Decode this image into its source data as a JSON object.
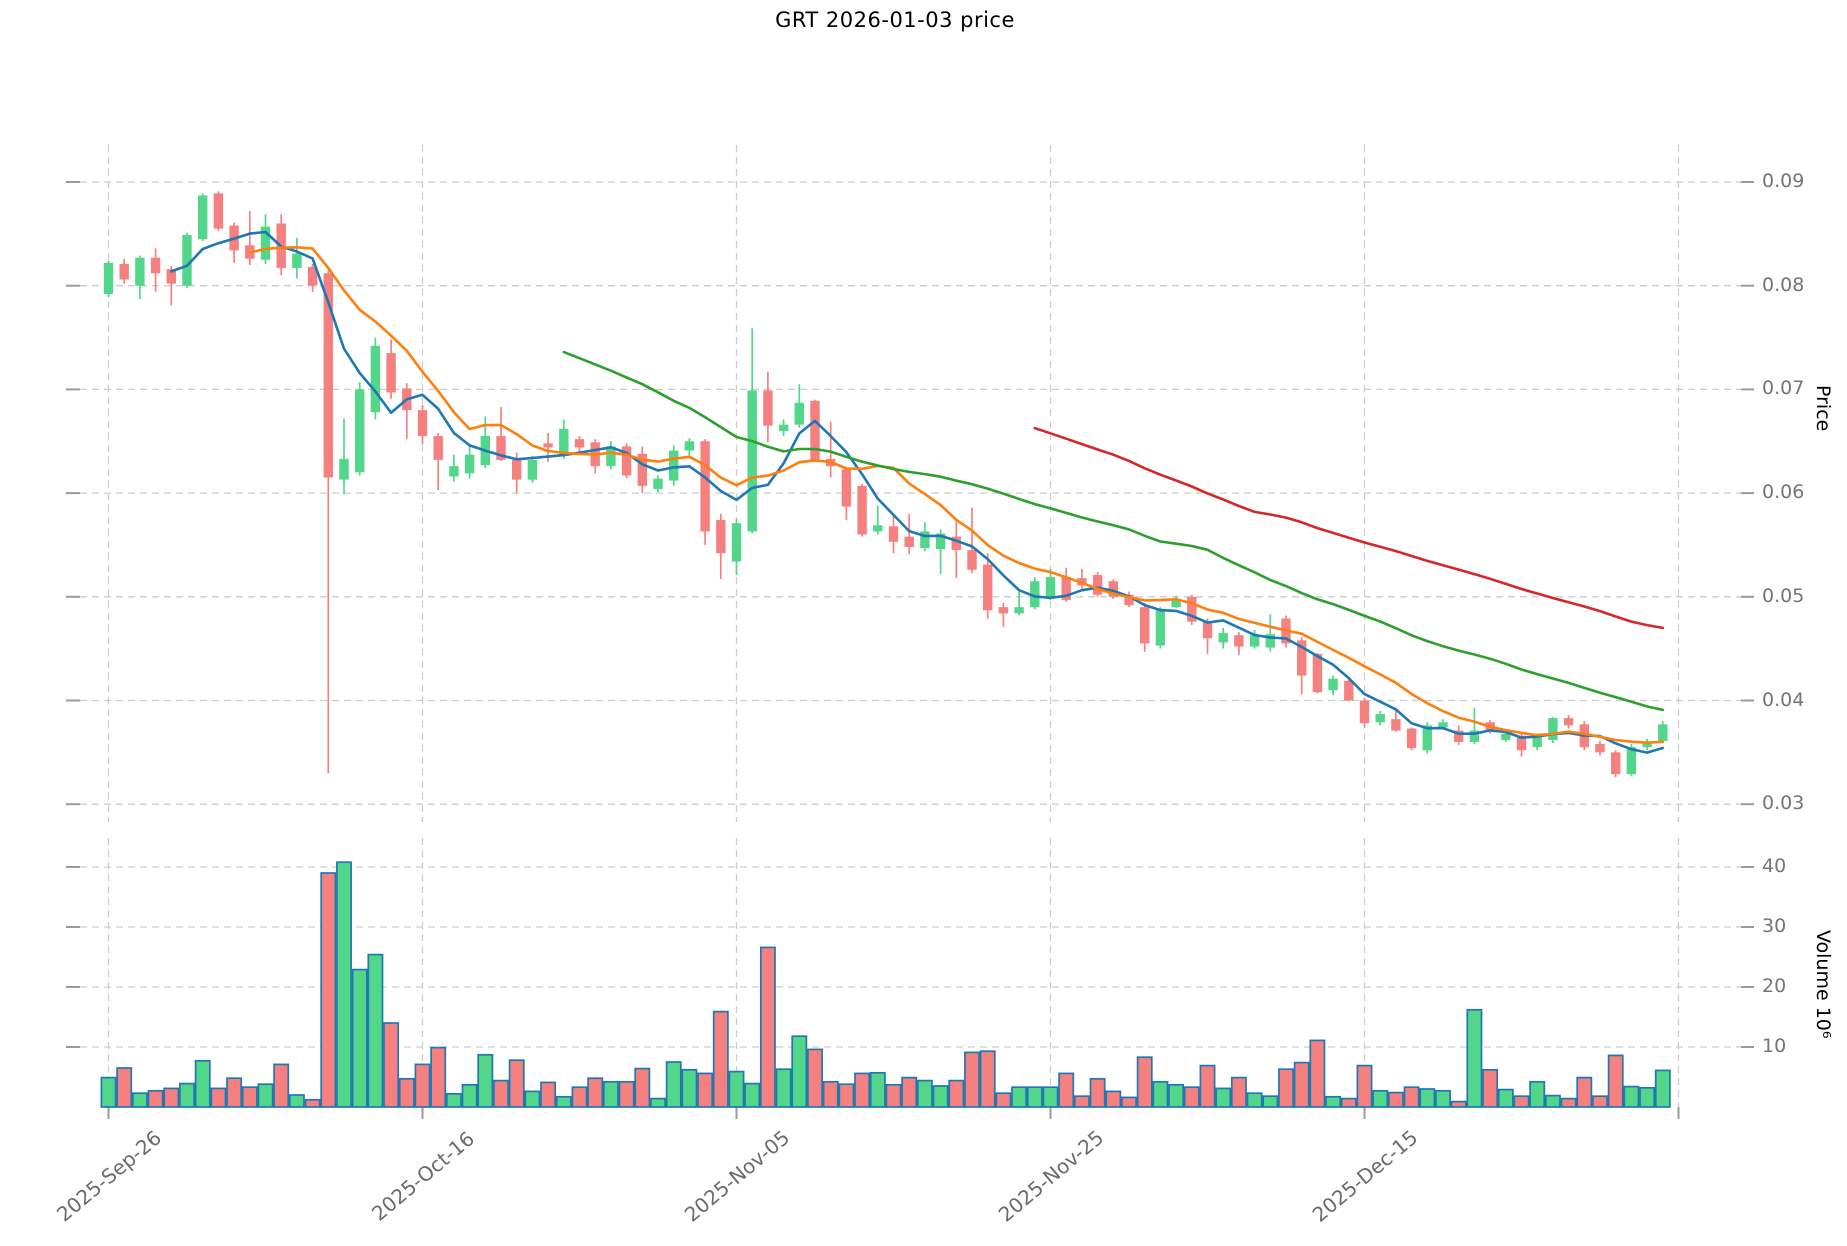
{
  "title": "GRT  2026-01-03  price",
  "axes": {
    "price_label": "Price",
    "volume_label": "Volume 10⁶",
    "price_ticks": [
      "0.09",
      "0.08",
      "0.07",
      "0.06",
      "0.05",
      "0.04",
      "0.03"
    ],
    "volume_ticks": [
      "40",
      "30",
      "20",
      "10"
    ],
    "x_ticks": [
      {
        "label": "2025-Sep-26",
        "day": 0
      },
      {
        "label": "2025-Oct-16",
        "day": 20
      },
      {
        "label": "2025-Nov-05",
        "day": 40
      },
      {
        "label": "2025-Nov-25",
        "day": 60
      },
      {
        "label": "2025-Dec-15",
        "day": 80
      },
      {
        "label": "",
        "day": 100
      }
    ]
  },
  "colors": {
    "up": "#52d689",
    "down": "#f4817f",
    "volume_edge": "#1f77b4",
    "ma5": "#1f77b4",
    "ma10": "#ff7f0e",
    "ma30": "#2ca02c",
    "ma60": "#d62728",
    "grid": "#cdcdcd",
    "tick": "#9a9a9a",
    "tick_text": "#757575"
  },
  "chart_data": {
    "type": "candlestick+volume",
    "title": "GRT  2026-01-03  price",
    "ylabel_price": "Price",
    "ylabel_volume": "Volume 10⁶",
    "price_ylim": [
      0.0285,
      0.094
    ],
    "volume_ylim_millions": [
      0,
      44.8
    ],
    "grid": "dashed",
    "legend": "none",
    "moving_averages": [
      {
        "n": 5,
        "color": "#1f77b4"
      },
      {
        "n": 10,
        "color": "#ff7f0e"
      },
      {
        "n": 30,
        "color": "#2ca02c"
      },
      {
        "n": 60,
        "color": "#d62728"
      }
    ],
    "columns": [
      "date",
      "open",
      "high",
      "low",
      "close",
      "volume_millions"
    ],
    "candles": [
      [
        "2025-09-26",
        0.0792,
        0.0824,
        0.0789,
        0.0822,
        4.9
      ],
      [
        "2025-09-27",
        0.0821,
        0.0826,
        0.0802,
        0.0806,
        6.5
      ],
      [
        "2025-09-28",
        0.08,
        0.0829,
        0.0787,
        0.0827,
        2.3
      ],
      [
        "2025-09-29",
        0.0827,
        0.0836,
        0.0794,
        0.0812,
        2.7
      ],
      [
        "2025-09-30",
        0.0816,
        0.0819,
        0.0781,
        0.0802,
        3.1
      ],
      [
        "2025-10-01",
        0.08,
        0.0851,
        0.0798,
        0.0849,
        3.9
      ],
      [
        "2025-10-02",
        0.0845,
        0.0889,
        0.0843,
        0.0887,
        7.7
      ],
      [
        "2025-10-03",
        0.0889,
        0.0891,
        0.0853,
        0.0855,
        3.1
      ],
      [
        "2025-10-04",
        0.0858,
        0.0861,
        0.0822,
        0.0834,
        4.8
      ],
      [
        "2025-10-05",
        0.0839,
        0.0872,
        0.082,
        0.0826,
        3.3
      ],
      [
        "2025-10-06",
        0.0825,
        0.0869,
        0.0821,
        0.0857,
        3.8
      ],
      [
        "2025-10-07",
        0.086,
        0.0869,
        0.081,
        0.0817,
        7.1
      ],
      [
        "2025-10-08",
        0.0817,
        0.0846,
        0.0807,
        0.0831,
        2.0
      ],
      [
        "2025-10-09",
        0.0818,
        0.0821,
        0.0794,
        0.08,
        1.2
      ],
      [
        "2025-10-10",
        0.0812,
        0.0815,
        0.033,
        0.0615,
        39.0
      ],
      [
        "2025-10-11",
        0.0613,
        0.0672,
        0.0599,
        0.0633,
        40.8
      ],
      [
        "2025-10-12",
        0.062,
        0.0707,
        0.0617,
        0.07,
        22.9
      ],
      [
        "2025-10-13",
        0.0678,
        0.075,
        0.0671,
        0.0742,
        25.4
      ],
      [
        "2025-10-14",
        0.0735,
        0.0748,
        0.0691,
        0.0697,
        14.0
      ],
      [
        "2025-10-15",
        0.0701,
        0.0706,
        0.0652,
        0.068,
        4.7
      ],
      [
        "2025-10-16",
        0.068,
        0.0685,
        0.0647,
        0.0655,
        7.1
      ],
      [
        "2025-10-17",
        0.0655,
        0.0658,
        0.0603,
        0.0632,
        9.9
      ],
      [
        "2025-10-18",
        0.0616,
        0.0637,
        0.0611,
        0.0626,
        2.2
      ],
      [
        "2025-10-19",
        0.0619,
        0.0647,
        0.0614,
        0.0637,
        3.7
      ],
      [
        "2025-10-20",
        0.0627,
        0.0674,
        0.0624,
        0.0655,
        8.7
      ],
      [
        "2025-10-21",
        0.0655,
        0.0683,
        0.0631,
        0.0632,
        4.4
      ],
      [
        "2025-10-22",
        0.0632,
        0.0639,
        0.06,
        0.0613,
        7.8
      ],
      [
        "2025-10-23",
        0.0613,
        0.0636,
        0.061,
        0.0632,
        2.6
      ],
      [
        "2025-10-24",
        0.0648,
        0.0658,
        0.063,
        0.0644,
        4.1
      ],
      [
        "2025-10-25",
        0.0636,
        0.0671,
        0.0633,
        0.0662,
        1.7
      ],
      [
        "2025-10-26",
        0.0652,
        0.0655,
        0.0639,
        0.0644,
        3.3
      ],
      [
        "2025-10-27",
        0.0649,
        0.0652,
        0.0619,
        0.0626,
        4.8
      ],
      [
        "2025-10-28",
        0.0626,
        0.065,
        0.0623,
        0.0645,
        4.2
      ],
      [
        "2025-10-29",
        0.0645,
        0.0648,
        0.0614,
        0.0617,
        4.2
      ],
      [
        "2025-10-30",
        0.0638,
        0.0645,
        0.06,
        0.0607,
        6.4
      ],
      [
        "2025-10-31",
        0.0604,
        0.0617,
        0.0601,
        0.0614,
        1.4
      ],
      [
        "2025-11-01",
        0.0612,
        0.0646,
        0.0607,
        0.0641,
        7.5
      ],
      [
        "2025-11-02",
        0.0641,
        0.0653,
        0.0636,
        0.065,
        6.2
      ],
      [
        "2025-11-03",
        0.065,
        0.0652,
        0.055,
        0.0563,
        5.6
      ],
      [
        "2025-11-04",
        0.0574,
        0.058,
        0.0517,
        0.0542,
        15.9
      ],
      [
        "2025-11-05",
        0.0534,
        0.0575,
        0.0521,
        0.0571,
        5.9
      ],
      [
        "2025-11-06",
        0.0563,
        0.0759,
        0.0561,
        0.0699,
        3.9
      ],
      [
        "2025-11-07",
        0.0699,
        0.0717,
        0.0649,
        0.0665,
        26.6
      ],
      [
        "2025-11-08",
        0.066,
        0.0671,
        0.0655,
        0.0666,
        6.3
      ],
      [
        "2025-11-09",
        0.0666,
        0.0705,
        0.0663,
        0.0687,
        11.8
      ],
      [
        "2025-11-10",
        0.0689,
        0.069,
        0.063,
        0.0631,
        9.6
      ],
      [
        "2025-11-11",
        0.0633,
        0.0669,
        0.0615,
        0.0626,
        4.2
      ],
      [
        "2025-11-12",
        0.0623,
        0.0625,
        0.0574,
        0.0587,
        3.8
      ],
      [
        "2025-11-13",
        0.0607,
        0.0609,
        0.0558,
        0.056,
        5.6
      ],
      [
        "2025-11-14",
        0.0563,
        0.0588,
        0.056,
        0.0569,
        5.7
      ],
      [
        "2025-11-15",
        0.0568,
        0.0578,
        0.0542,
        0.0553,
        3.7
      ],
      [
        "2025-11-16",
        0.0558,
        0.058,
        0.0541,
        0.0548,
        4.9
      ],
      [
        "2025-11-17",
        0.0547,
        0.0572,
        0.0544,
        0.0563,
        4.4
      ],
      [
        "2025-11-18",
        0.0546,
        0.0565,
        0.0522,
        0.0561,
        3.5
      ],
      [
        "2025-11-19",
        0.0558,
        0.0573,
        0.0518,
        0.0545,
        4.4
      ],
      [
        "2025-11-20",
        0.0545,
        0.0586,
        0.0523,
        0.0526,
        9.1
      ],
      [
        "2025-11-21",
        0.0531,
        0.0542,
        0.0479,
        0.0487,
        9.3
      ],
      [
        "2025-11-22",
        0.049,
        0.0494,
        0.0471,
        0.0484,
        2.3
      ],
      [
        "2025-11-23",
        0.0484,
        0.0505,
        0.0482,
        0.049,
        3.3
      ],
      [
        "2025-11-24",
        0.049,
        0.0519,
        0.0488,
        0.0515,
        3.3
      ],
      [
        "2025-11-25",
        0.05,
        0.0527,
        0.0497,
        0.0519,
        3.3
      ],
      [
        "2025-11-26",
        0.0519,
        0.0528,
        0.0495,
        0.0497,
        5.6
      ],
      [
        "2025-11-27",
        0.0518,
        0.0527,
        0.0508,
        0.0511,
        1.8
      ],
      [
        "2025-11-28",
        0.0521,
        0.0524,
        0.05,
        0.0502,
        4.7
      ],
      [
        "2025-11-29",
        0.0515,
        0.0517,
        0.0498,
        0.05,
        2.6
      ],
      [
        "2025-11-30",
        0.0502,
        0.0505,
        0.049,
        0.0492,
        1.6
      ],
      [
        "2025-12-01",
        0.049,
        0.0494,
        0.0447,
        0.0455,
        8.3
      ],
      [
        "2025-12-02",
        0.0453,
        0.049,
        0.045,
        0.0487,
        4.2
      ],
      [
        "2025-12-03",
        0.049,
        0.0501,
        0.0489,
        0.0498,
        3.7
      ],
      [
        "2025-12-04",
        0.05,
        0.0502,
        0.0473,
        0.0476,
        3.3
      ],
      [
        "2025-12-05",
        0.0476,
        0.0479,
        0.0445,
        0.046,
        6.9
      ],
      [
        "2025-12-06",
        0.0456,
        0.047,
        0.045,
        0.0465,
        3.1
      ],
      [
        "2025-12-07",
        0.0463,
        0.0466,
        0.0444,
        0.0452,
        4.9
      ],
      [
        "2025-12-08",
        0.0452,
        0.0468,
        0.045,
        0.0463,
        2.3
      ],
      [
        "2025-12-09",
        0.0451,
        0.0483,
        0.0447,
        0.0464,
        1.8
      ],
      [
        "2025-12-10",
        0.0479,
        0.0482,
        0.0451,
        0.0455,
        6.3
      ],
      [
        "2025-12-11",
        0.0458,
        0.0461,
        0.0406,
        0.0424,
        7.4
      ],
      [
        "2025-12-12",
        0.0445,
        0.0446,
        0.0407,
        0.0408,
        11.1
      ],
      [
        "2025-12-13",
        0.041,
        0.0424,
        0.0405,
        0.0421,
        1.7
      ],
      [
        "2025-12-14",
        0.0419,
        0.0421,
        0.0399,
        0.04,
        1.4
      ],
      [
        "2025-12-15",
        0.04,
        0.0402,
        0.0374,
        0.0378,
        6.9
      ],
      [
        "2025-12-16",
        0.0379,
        0.039,
        0.0376,
        0.0387,
        2.7
      ],
      [
        "2025-12-17",
        0.0382,
        0.0393,
        0.037,
        0.0371,
        2.4
      ],
      [
        "2025-12-18",
        0.0373,
        0.0374,
        0.0352,
        0.0354,
        3.3
      ],
      [
        "2025-12-19",
        0.0352,
        0.0379,
        0.0349,
        0.0376,
        3.0
      ],
      [
        "2025-12-20",
        0.0374,
        0.0382,
        0.0373,
        0.0379,
        2.7
      ],
      [
        "2025-12-21",
        0.0371,
        0.0376,
        0.0357,
        0.036,
        0.9
      ],
      [
        "2025-12-22",
        0.036,
        0.0393,
        0.0358,
        0.0371,
        16.2
      ],
      [
        "2025-12-23",
        0.0379,
        0.0381,
        0.0368,
        0.037,
        6.2
      ],
      [
        "2025-12-24",
        0.0362,
        0.0371,
        0.036,
        0.0368,
        2.9
      ],
      [
        "2025-12-25",
        0.0366,
        0.0369,
        0.0346,
        0.0352,
        1.8
      ],
      [
        "2025-12-26",
        0.0355,
        0.0367,
        0.0352,
        0.0365,
        4.2
      ],
      [
        "2025-12-27",
        0.0362,
        0.0384,
        0.0359,
        0.0383,
        1.9
      ],
      [
        "2025-12-28",
        0.0383,
        0.0386,
        0.0373,
        0.0376,
        1.4
      ],
      [
        "2025-12-29",
        0.0377,
        0.038,
        0.0352,
        0.0355,
        4.9
      ],
      [
        "2025-12-30",
        0.0358,
        0.0361,
        0.0347,
        0.035,
        1.8
      ],
      [
        "2025-12-31",
        0.035,
        0.0352,
        0.0326,
        0.0329,
        8.6
      ],
      [
        "2026-01-01",
        0.0329,
        0.0358,
        0.0327,
        0.0355,
        3.4
      ],
      [
        "2026-01-02",
        0.0355,
        0.0363,
        0.0352,
        0.036,
        3.2
      ],
      [
        "2026-01-03",
        0.0361,
        0.038,
        0.0359,
        0.0377,
        6.1
      ]
    ]
  }
}
